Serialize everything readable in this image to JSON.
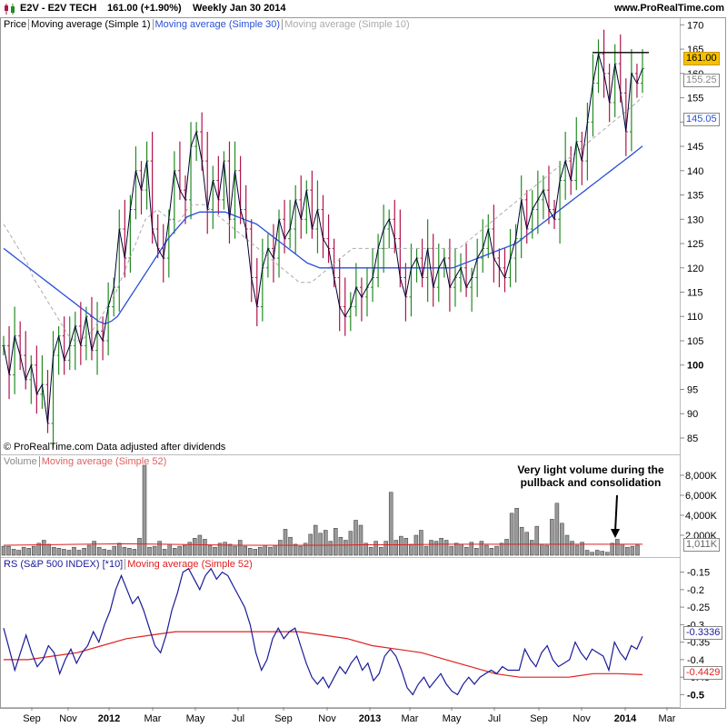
{
  "header": {
    "title": "E2V - E2V TECH",
    "last": "161.00 (+1.90%)",
    "period": "Weekly  Jan 30 2014",
    "site": "www.ProRealTime.com"
  },
  "price_panel": {
    "legend": [
      "Price",
      "Moving average (Simple 1)",
      "Moving average (Simple 30)",
      "Moving average (Simple 10)"
    ],
    "copyright": "© ProRealTime.com  Data adjusted after dividends",
    "tags": {
      "last": "161.00",
      "ma10": "155.25",
      "ma30": "145.05"
    }
  },
  "volume_panel": {
    "legend": [
      "Volume",
      "Moving average (Simple 52)"
    ],
    "annotation": [
      "Very light volume during the",
      "pullback and consolidation"
    ],
    "tag": "1,011K"
  },
  "rs_panel": {
    "legend": [
      "RS (S&P 500 INDEX) [*10]",
      "Moving average (Simple 52)"
    ],
    "tags": {
      "rs": "-0.3336",
      "ma": "-0.4429"
    }
  },
  "colors": {
    "up": "#228b22",
    "down": "#b0144a",
    "ma30": "#2a4fd6",
    "ma10": "#aaaaaa",
    "ma52": "#e02020",
    "rs": "#1a1a9a",
    "close": "#000033"
  },
  "chart_data": [
    {
      "type": "line",
      "title": "E2V - E2V TECH Weekly",
      "ylim": [
        82,
        171
      ],
      "yticks": [
        85,
        90,
        95,
        100,
        105,
        110,
        115,
        120,
        125,
        130,
        135,
        140,
        145,
        150,
        155,
        160,
        165,
        170
      ],
      "x_ticks": [
        "Sep",
        "Nov",
        "2012",
        "Mar",
        "May",
        "Jul",
        "Sep",
        "Nov",
        "2013",
        "Mar",
        "May",
        "Jul",
        "Sep",
        "Nov",
        "2014",
        "Mar"
      ],
      "series": [
        {
          "name": "Price",
          "values": [
            104,
            98,
            106,
            102,
            97,
            100,
            94,
            96,
            88,
            102,
            106,
            101,
            104,
            108,
            104,
            110,
            103,
            107,
            105,
            112,
            116,
            128,
            122,
            132,
            140,
            136,
            142,
            128,
            124,
            122,
            130,
            140,
            136,
            134,
            145,
            148,
            142,
            132,
            138,
            134,
            142,
            130,
            140,
            132,
            128,
            118,
            112,
            120,
            124,
            122,
            130,
            126,
            128,
            134,
            130,
            136,
            128,
            132,
            126,
            124,
            118,
            112,
            110,
            112,
            116,
            114,
            116,
            118,
            124,
            128,
            130,
            126,
            118,
            114,
            120,
            122,
            118,
            124,
            116,
            120,
            122,
            116,
            118,
            120,
            116,
            118,
            122,
            124,
            128,
            122,
            120,
            118,
            122,
            126,
            134,
            128,
            132,
            134,
            136,
            132,
            130,
            138,
            142,
            138,
            146,
            142,
            150,
            158,
            164,
            160,
            154,
            162,
            156,
            148,
            160,
            158,
            161
          ]
        },
        {
          "name": "Moving average (Simple 30)",
          "values": [
            124,
            123,
            122,
            121,
            120,
            119,
            118,
            117,
            116,
            115,
            114,
            113,
            112,
            111,
            110,
            109,
            108.5,
            109,
            110,
            112,
            114,
            116,
            118,
            120,
            122,
            124,
            126,
            127.5,
            129,
            130.5,
            131,
            131.5,
            131.5,
            131.5,
            131.5,
            131.5,
            131,
            130.5,
            130,
            129.5,
            129,
            128,
            127,
            126,
            125,
            124,
            123,
            122,
            121,
            120.5,
            120,
            120,
            120,
            120,
            120,
            120,
            120,
            120,
            120,
            120,
            120,
            120,
            120,
            120,
            120,
            120,
            120,
            120,
            120,
            120,
            120,
            120,
            120.5,
            121,
            121.5,
            122,
            122.5,
            123,
            123.5,
            124,
            124.5,
            125,
            126,
            127,
            128,
            129,
            130,
            131,
            132,
            133,
            134,
            135,
            136,
            137,
            138,
            139,
            140,
            141,
            142,
            143,
            144,
            145.05
          ]
        },
        {
          "name": "Moving average (Simple 10)",
          "values": [
            129,
            127,
            125,
            123,
            121,
            118,
            116,
            114,
            112,
            110,
            108,
            106,
            105,
            105,
            106,
            107,
            109,
            111,
            113,
            115,
            118,
            121,
            124,
            127,
            130,
            131,
            132,
            131,
            130,
            129,
            130,
            132,
            133,
            133,
            133,
            132,
            131,
            130,
            129,
            128,
            127,
            126,
            125,
            124,
            123,
            122,
            121,
            120,
            119,
            118,
            117,
            117,
            117,
            118,
            119,
            120,
            121,
            122,
            123,
            124,
            124,
            124,
            124,
            124,
            124,
            124,
            124,
            124,
            124,
            124,
            124,
            124,
            124,
            124,
            124,
            124,
            124,
            124,
            125,
            126,
            127,
            128,
            129,
            130,
            131,
            132,
            133,
            134,
            135,
            136,
            137,
            138,
            139,
            140,
            141,
            142,
            143,
            144,
            145,
            146,
            147,
            148,
            149,
            150,
            151,
            152,
            153,
            154,
            155.25
          ]
        }
      ]
    },
    {
      "type": "bar",
      "title": "Volume",
      "ylim": [
        0,
        9000
      ],
      "yticks": [
        2000,
        4000,
        6000,
        8000
      ],
      "ytick_labels": [
        "2,000K",
        "4,000K",
        "6,000K",
        "8,000K"
      ],
      "series": [
        {
          "name": "Volume",
          "values": [
            900,
            900,
            600,
            500,
            800,
            700,
            900,
            1200,
            1500,
            1100,
            800,
            700,
            600,
            500,
            800,
            500,
            700,
            1000,
            1400,
            800,
            600,
            500,
            900,
            1200,
            800,
            700,
            600,
            1700,
            9000,
            800,
            900,
            1400,
            600,
            1100,
            700,
            900,
            1000,
            1300,
            1700,
            2000,
            1600,
            1000,
            800,
            1200,
            1300,
            1100,
            900,
            1500,
            900,
            700,
            600,
            800,
            1000,
            800,
            1000,
            1500,
            2600,
            1800,
            1100,
            900,
            1200,
            2100,
            3000,
            2200,
            2500,
            1400,
            2700,
            1800,
            1500,
            2400,
            3500,
            3000,
            1200,
            800,
            1400,
            800,
            1400,
            6300,
            1500,
            1900,
            1700,
            1100,
            2000,
            2500,
            900,
            1500,
            1400,
            1700,
            1500,
            900,
            1200,
            1100,
            800,
            1300,
            700,
            1400,
            1000,
            700,
            900,
            1200,
            1600,
            4200,
            4700,
            2800,
            2300,
            1500,
            2900,
            1100,
            1000,
            3600,
            5200,
            3200,
            2000,
            1400,
            1000,
            1300,
            500,
            300,
            500,
            400,
            300,
            1200,
            1600,
            1100,
            800,
            900,
            1011
          ]
        },
        {
          "name": "Moving average (Simple 52)",
          "values": [
            1000,
            1050,
            1100,
            1150,
            1100,
            1050,
            1000,
            1000,
            1000,
            1050,
            1050,
            1100,
            1100,
            1100,
            1100,
            1100,
            1100
          ]
        }
      ]
    },
    {
      "type": "line",
      "title": "RS (S&P 500 INDEX) [*10]",
      "ylim": [
        -0.53,
        -0.12
      ],
      "yticks": [
        -0.15,
        -0.2,
        -0.25,
        -0.3,
        -0.35,
        -0.4,
        -0.45,
        -0.5
      ],
      "series": [
        {
          "name": "RS (S&P 500 INDEX) [*10]",
          "values": [
            -0.31,
            -0.37,
            -0.43,
            -0.38,
            -0.33,
            -0.38,
            -0.42,
            -0.4,
            -0.36,
            -0.38,
            -0.44,
            -0.4,
            -0.37,
            -0.41,
            -0.38,
            -0.36,
            -0.32,
            -0.35,
            -0.3,
            -0.26,
            -0.2,
            -0.16,
            -0.2,
            -0.24,
            -0.22,
            -0.26,
            -0.31,
            -0.36,
            -0.38,
            -0.33,
            -0.26,
            -0.21,
            -0.15,
            -0.14,
            -0.17,
            -0.2,
            -0.16,
            -0.14,
            -0.17,
            -0.15,
            -0.16,
            -0.19,
            -0.22,
            -0.25,
            -0.3,
            -0.38,
            -0.43,
            -0.4,
            -0.34,
            -0.31,
            -0.34,
            -0.32,
            -0.31,
            -0.36,
            -0.41,
            -0.45,
            -0.47,
            -0.45,
            -0.48,
            -0.45,
            -0.42,
            -0.44,
            -0.41,
            -0.39,
            -0.43,
            -0.41,
            -0.46,
            -0.44,
            -0.39,
            -0.37,
            -0.39,
            -0.43,
            -0.48,
            -0.5,
            -0.47,
            -0.45,
            -0.48,
            -0.46,
            -0.44,
            -0.47,
            -0.49,
            -0.5,
            -0.47,
            -0.45,
            -0.47,
            -0.45,
            -0.44,
            -0.43,
            -0.44,
            -0.42,
            -0.43,
            -0.43,
            -0.43,
            -0.37,
            -0.4,
            -0.42,
            -0.38,
            -0.36,
            -0.4,
            -0.42,
            -0.41,
            -0.4,
            -0.35,
            -0.38,
            -0.4,
            -0.37,
            -0.38,
            -0.39,
            -0.43,
            -0.35,
            -0.38,
            -0.4,
            -0.36,
            -0.37,
            -0.3336
          ]
        },
        {
          "name": "Moving average (Simple 52)",
          "values": [
            -0.4,
            -0.4,
            -0.39,
            -0.38,
            -0.36,
            -0.34,
            -0.33,
            -0.32,
            -0.32,
            -0.32,
            -0.32,
            -0.32,
            -0.32,
            -0.33,
            -0.34,
            -0.36,
            -0.37,
            -0.38,
            -0.4,
            -0.42,
            -0.44,
            -0.45,
            -0.45,
            -0.45,
            -0.44,
            -0.44,
            -0.4429
          ]
        }
      ]
    }
  ]
}
